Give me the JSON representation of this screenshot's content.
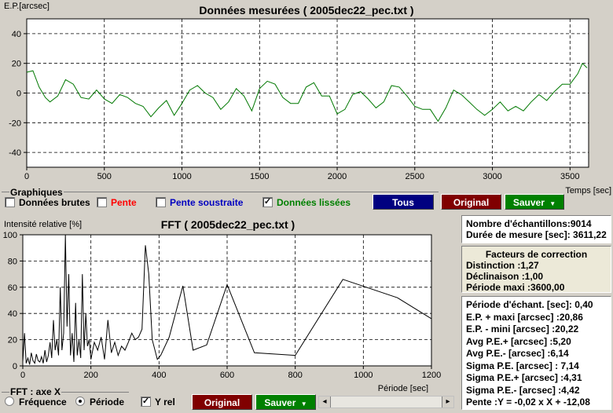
{
  "top_chart": {
    "title": "Données mesurées ( 2005dec22_pec.txt )",
    "y_axis_label": "E.P.[arcsec]",
    "x_axis_label": "Temps [sec]",
    "x_ticks": [
      "0",
      "500",
      "1000",
      "1500",
      "2000",
      "2500",
      "3000",
      "3500"
    ],
    "y_ticks": [
      "40",
      "20",
      "0",
      "-20",
      "-40"
    ]
  },
  "graphiques": {
    "group_label": "Graphiques",
    "donnees_brutes": {
      "label": "Données brutes",
      "checked": false,
      "color": "#000000"
    },
    "pente": {
      "label": "Pente",
      "checked": false,
      "color": "#ff0000"
    },
    "pente_soustraite": {
      "label": "Pente soustraite",
      "checked": false,
      "color": "#0000c0"
    },
    "donnees_lissees": {
      "label": "Données lissées",
      "checked": true,
      "color": "#008000"
    },
    "tous_label": "Tous",
    "original_label": "Original",
    "sauver_label": "Sauver",
    "check_mark": "✓"
  },
  "fft_chart": {
    "title": "FFT ( 2005dec22_pec.txt )",
    "y_axis_label": "Intensité relative [%]",
    "x_axis_label": "Période [sec]",
    "x_ticks": [
      "0",
      "200",
      "400",
      "600",
      "800",
      "1000",
      "1200"
    ],
    "y_ticks": [
      "100",
      "80",
      "60",
      "40",
      "20",
      "0"
    ]
  },
  "fft_controls": {
    "axis_group_label": "FFT : axe X",
    "frequence_label": "Fréquence",
    "periode_label": "Période",
    "periode_selected": true,
    "yrel_label": "Y rel",
    "yrel_checked": true,
    "original_label": "Original",
    "sauver_label": "Sauver",
    "check_mark": "✓",
    "scroll_left": "◂",
    "scroll_right": "▸"
  },
  "info": {
    "samples": "Nombre d'échantillons:9014",
    "duration": "Durée de mesure [sec]: 3611,22"
  },
  "correction": {
    "title": "Facteurs de correction",
    "distinction": "Distinction :1,27",
    "declinaison": "Déclinaison :1,00",
    "periode_maxi": "Période maxi :3600,00"
  },
  "stats": {
    "periode_echant": "Période d'échant. [sec]: 0,40",
    "ep_maxi": "E.P. + maxi [arcsec] :20,86",
    "ep_mini": "E.P. - mini [arcsec] :20,22",
    "avg_pe_plus": "Avg P.E.+ [arcsec] :5,20",
    "avg_pe_minus": "Avg P.E.- [arcsec] :6,14",
    "sigma_pe": "Sigma P.E. [arcsec] : 7,14",
    "sigma_pe_plus": "Sigma P.E.+ [arcsec] :4,31",
    "sigma_pe_minus": "Sigma P.E.- [arcsec] :4,42",
    "pente": "Pente :Y = -0,02 x X + -12,08"
  },
  "colors": {
    "chart_bg": "#ffffff",
    "top_series": "#007800",
    "fft_series": "#000000",
    "tous_button": "#000080",
    "original_button": "#800000",
    "sauver_button": "#008000",
    "correction_panel": "#ece9d8",
    "highlight_panel": "#fffbe8"
  },
  "chart_data": [
    {
      "type": "line",
      "title": "Données mesurées ( 2005dec22_pec.txt )",
      "xlabel": "Temps [sec]",
      "ylabel": "E.P.[arcsec]",
      "xlim": [
        0,
        3620
      ],
      "ylim": [
        -50,
        50
      ],
      "grid": true,
      "series": [
        {
          "x": [
            0,
            40,
            80,
            120,
            150,
            200,
            250,
            300,
            350,
            400,
            450,
            500,
            550,
            600,
            650,
            700,
            750,
            800,
            850,
            900,
            950,
            1000,
            1050,
            1100,
            1150,
            1200,
            1250,
            1300,
            1350,
            1400,
            1450,
            1500,
            1550,
            1600,
            1650,
            1700,
            1750,
            1800,
            1850,
            1900,
            1950,
            2000,
            2050,
            2100,
            2150,
            2200,
            2250,
            2300,
            2350,
            2400,
            2450,
            2500,
            2550,
            2600,
            2650,
            2700,
            2750,
            2800,
            2850,
            2900,
            2950,
            3000,
            3050,
            3100,
            3150,
            3200,
            3250,
            3300,
            3350,
            3400,
            3450,
            3500,
            3550,
            3580,
            3610
          ],
          "y": [
            14,
            15,
            4,
            -3,
            -6,
            -2,
            9,
            6,
            -3,
            -4,
            2,
            -4,
            -7,
            -1,
            -3,
            -7,
            -9,
            -16,
            -10,
            -5,
            -15,
            -7,
            2,
            5,
            0,
            -3,
            -11,
            -6,
            3,
            -2,
            -12,
            3,
            8,
            6,
            -3,
            -7,
            -7,
            4,
            7,
            -2,
            -2,
            -14,
            -11,
            -1,
            1,
            -4,
            -10,
            -6,
            5,
            4,
            -2,
            -9,
            -11,
            -11,
            -19,
            -10,
            2,
            -1,
            -6,
            -11,
            -15,
            -11,
            -6,
            -12,
            -9,
            -12,
            -6,
            -1,
            -5,
            1,
            6,
            6,
            13,
            20,
            17
          ]
        }
      ]
    },
    {
      "type": "line",
      "title": "FFT ( 2005dec22_pec.txt )",
      "xlabel": "Période [sec]",
      "ylabel": "Intensité relative [%]",
      "xlim": [
        0,
        1200
      ],
      "ylim": [
        0,
        100
      ],
      "grid": true,
      "series": [
        {
          "x": [
            0,
            5,
            10,
            15,
            20,
            25,
            30,
            35,
            40,
            45,
            50,
            55,
            60,
            65,
            70,
            75,
            80,
            85,
            90,
            95,
            100,
            105,
            110,
            115,
            120,
            125,
            130,
            135,
            140,
            145,
            150,
            155,
            160,
            165,
            170,
            175,
            180,
            185,
            190,
            195,
            200,
            210,
            220,
            230,
            240,
            250,
            260,
            270,
            280,
            290,
            300,
            310,
            320,
            330,
            340,
            350,
            360,
            370,
            380,
            395,
            405,
            430,
            470,
            500,
            540,
            600,
            680,
            800,
            940,
            1100,
            1200
          ],
          "y": [
            3,
            25,
            2,
            6,
            1,
            10,
            4,
            2,
            9,
            4,
            3,
            7,
            2,
            12,
            3,
            8,
            18,
            6,
            35,
            12,
            20,
            8,
            60,
            12,
            25,
            100,
            30,
            70,
            8,
            25,
            3,
            48,
            8,
            20,
            6,
            70,
            12,
            40,
            15,
            20,
            5,
            18,
            12,
            22,
            5,
            35,
            10,
            18,
            8,
            15,
            12,
            18,
            25,
            20,
            22,
            28,
            92,
            70,
            20,
            5,
            8,
            22,
            61,
            12,
            16,
            62,
            10,
            8,
            66,
            52,
            36
          ]
        }
      ]
    }
  ]
}
